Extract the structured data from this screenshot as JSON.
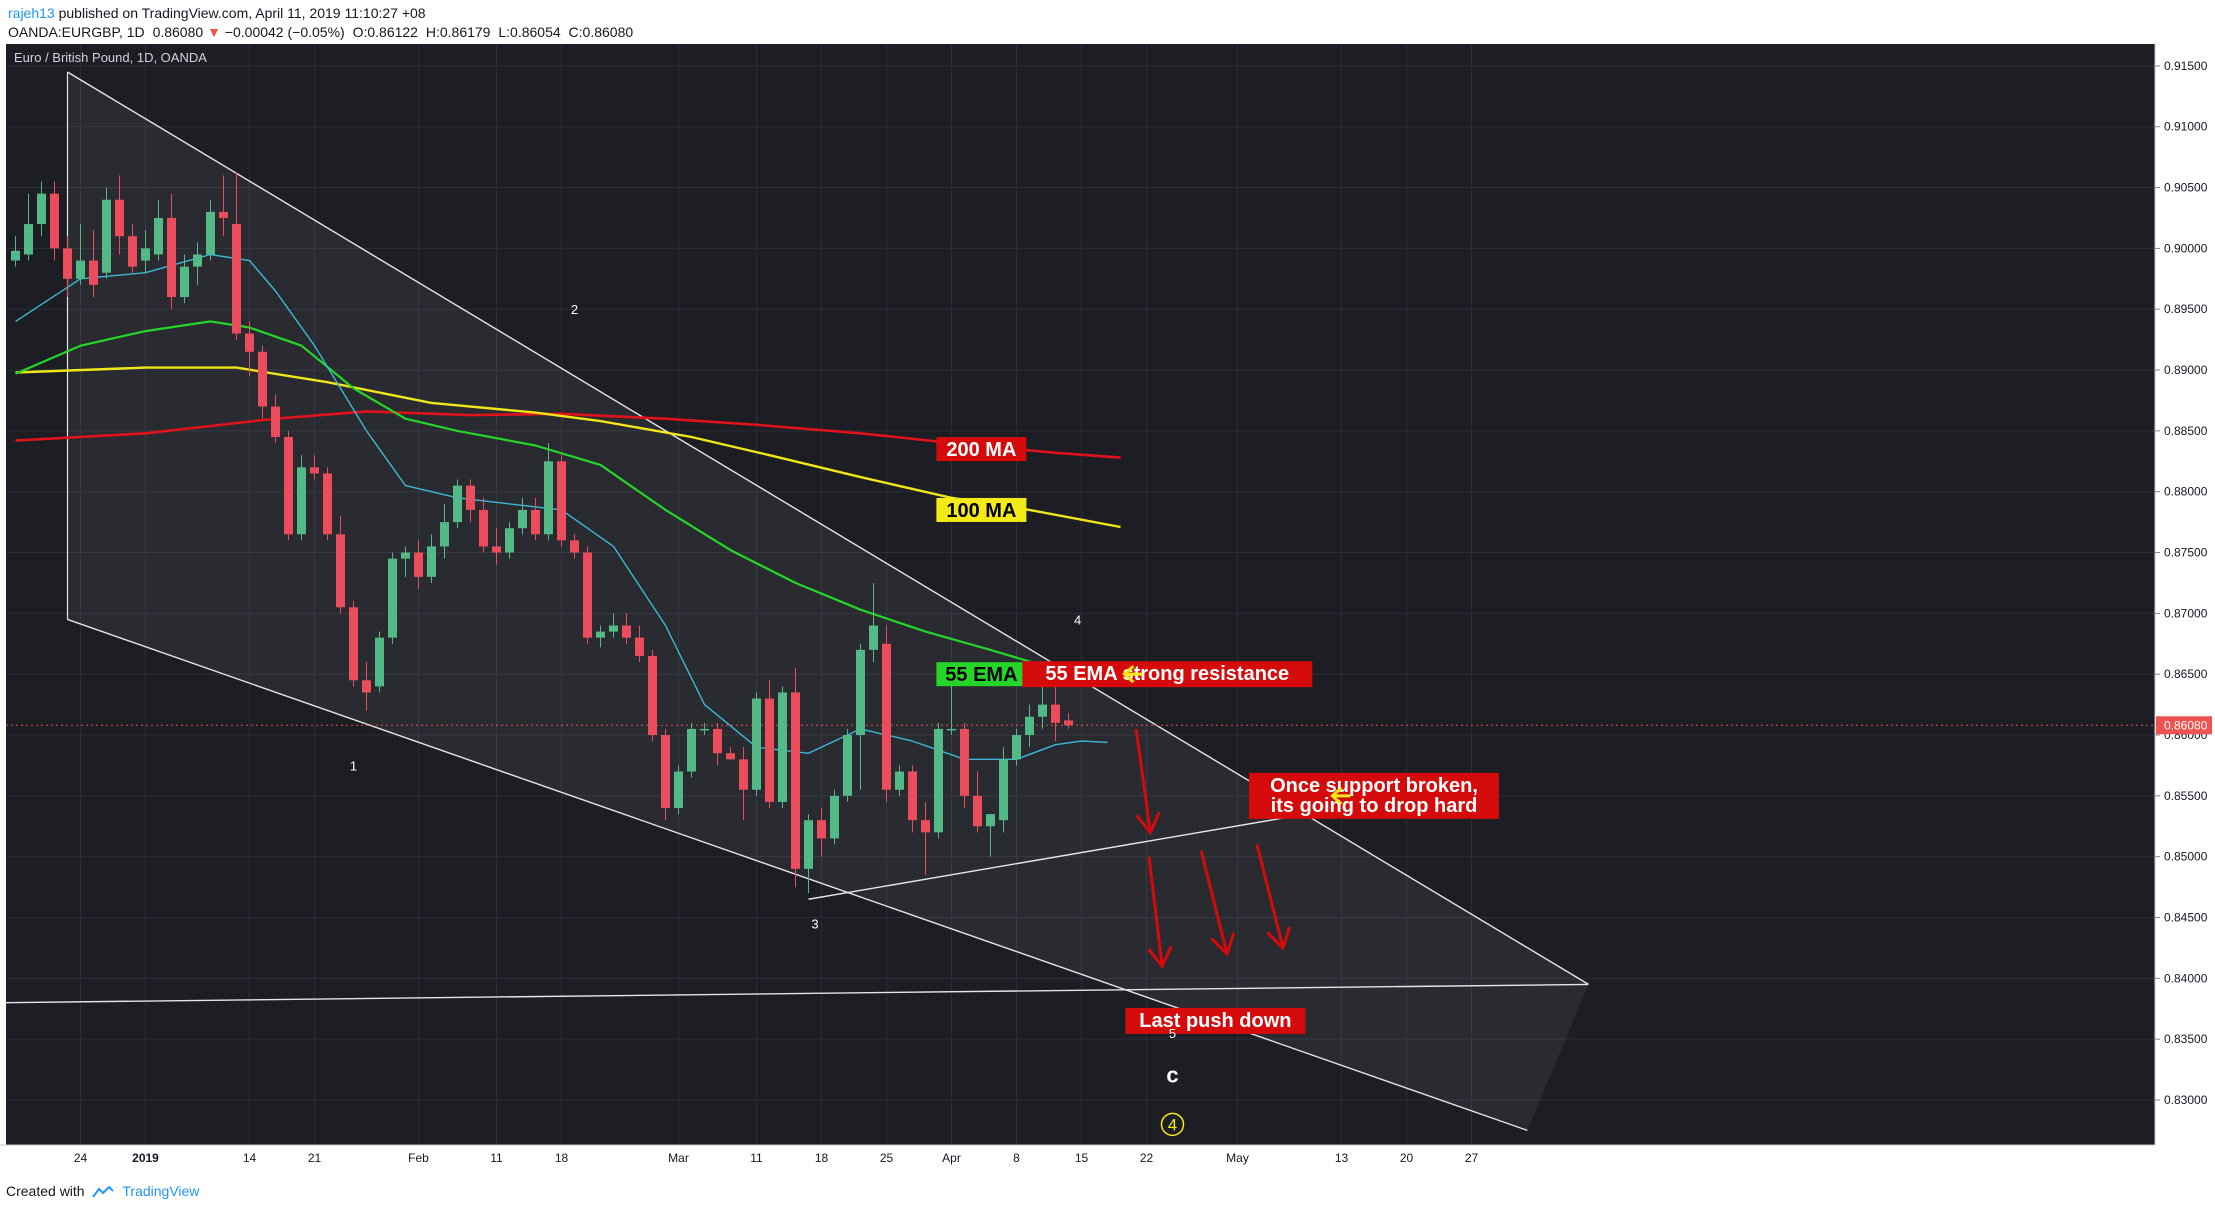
{
  "header": {
    "publisher_user": "rajeh13",
    "publisher_text": "published on TradingView.com, April 11, 2019 11:10:27 +08",
    "symbol": "OANDA:EURGBP, 1D",
    "last": "0.86080",
    "change": "−0.00042 (−0.05%)",
    "o_label": "O:",
    "o_value": "0.86122",
    "h_label": "H:",
    "h_value": "0.86179",
    "l_label": "L:",
    "l_value": "0.86054",
    "c_label": "C:",
    "c_value": "0.86080"
  },
  "footer": {
    "created_with": "Created with",
    "brand": "TradingView"
  },
  "colors": {
    "bg": "#1c1e24",
    "grid": "#2a2e39",
    "up": "#53b987",
    "down": "#eb4d5c",
    "ma200": "#e0121b",
    "ma100": "#f1e61a",
    "ema55": "#25d629",
    "ema_fast": "#3bb9d6",
    "channel": "#e6e6e6",
    "arrow_red": "#d50a0a",
    "arrow_yellow": "#f3ea16",
    "price_line": "#e05050"
  },
  "chart_data": {
    "type": "candlestick",
    "title": "Euro / British Pound, 1D, OANDA",
    "y_axis": {
      "range": [
        0.8263,
        0.9168
      ],
      "ticks": [
        "0.91500",
        "0.91000",
        "0.90500",
        "0.90000",
        "0.89500",
        "0.89000",
        "0.88500",
        "0.88000",
        "0.87500",
        "0.87000",
        "0.86500",
        "0.86000",
        "0.85500",
        "0.85000",
        "0.84500",
        "0.84000",
        "0.83500",
        "0.83000"
      ],
      "last_price_label": "0.86080",
      "last_price": 0.8608
    },
    "x_axis": {
      "tick_labels": [
        {
          "text": "24",
          "i": 5,
          "bold": false
        },
        {
          "text": "2019",
          "i": 10,
          "bold": true
        },
        {
          "text": "14",
          "i": 18,
          "bold": false
        },
        {
          "text": "21",
          "i": 23,
          "bold": false
        },
        {
          "text": "Feb",
          "i": 31,
          "bold": false
        },
        {
          "text": "11",
          "i": 37,
          "bold": false
        },
        {
          "text": "18",
          "i": 42,
          "bold": false
        },
        {
          "text": "Mar",
          "i": 51,
          "bold": false
        },
        {
          "text": "11",
          "i": 57,
          "bold": false
        },
        {
          "text": "18",
          "i": 62,
          "bold": false
        },
        {
          "text": "25",
          "i": 67,
          "bold": false
        },
        {
          "text": "Apr",
          "i": 72,
          "bold": false
        },
        {
          "text": "8",
          "i": 77,
          "bold": false
        },
        {
          "text": "15",
          "i": 82,
          "bold": false
        },
        {
          "text": "22",
          "i": 87,
          "bold": false
        },
        {
          "text": "May",
          "i": 94,
          "bold": false
        },
        {
          "text": "13",
          "i": 102,
          "bold": false
        },
        {
          "text": "20",
          "i": 107,
          "bold": false
        },
        {
          "text": "27",
          "i": 112,
          "bold": false
        }
      ]
    },
    "candles": [
      {
        "o": 0.899,
        "h": 0.901,
        "l": 0.8985,
        "c": 0.8998
      },
      {
        "o": 0.8995,
        "h": 0.9045,
        "l": 0.899,
        "c": 0.902
      },
      {
        "o": 0.902,
        "h": 0.9055,
        "l": 0.901,
        "c": 0.9045
      },
      {
        "o": 0.9045,
        "h": 0.9055,
        "l": 0.899,
        "c": 0.9
      },
      {
        "o": 0.9,
        "h": 0.901,
        "l": 0.896,
        "c": 0.8975
      },
      {
        "o": 0.8975,
        "h": 0.902,
        "l": 0.897,
        "c": 0.899
      },
      {
        "o": 0.899,
        "h": 0.9015,
        "l": 0.896,
        "c": 0.897
      },
      {
        "o": 0.898,
        "h": 0.905,
        "l": 0.8975,
        "c": 0.904
      },
      {
        "o": 0.904,
        "h": 0.906,
        "l": 0.8995,
        "c": 0.901
      },
      {
        "o": 0.901,
        "h": 0.902,
        "l": 0.898,
        "c": 0.8985
      },
      {
        "o": 0.899,
        "h": 0.9015,
        "l": 0.898,
        "c": 0.9
      },
      {
        "o": 0.8995,
        "h": 0.904,
        "l": 0.899,
        "c": 0.9025
      },
      {
        "o": 0.9025,
        "h": 0.9045,
        "l": 0.895,
        "c": 0.896
      },
      {
        "o": 0.896,
        "h": 0.8995,
        "l": 0.8955,
        "c": 0.8985
      },
      {
        "o": 0.8985,
        "h": 0.9005,
        "l": 0.897,
        "c": 0.8995
      },
      {
        "o": 0.8995,
        "h": 0.904,
        "l": 0.899,
        "c": 0.903
      },
      {
        "o": 0.903,
        "h": 0.906,
        "l": 0.901,
        "c": 0.9025
      },
      {
        "o": 0.902,
        "h": 0.9062,
        "l": 0.8925,
        "c": 0.893
      },
      {
        "o": 0.893,
        "h": 0.894,
        "l": 0.8895,
        "c": 0.8915
      },
      {
        "o": 0.8915,
        "h": 0.892,
        "l": 0.886,
        "c": 0.887
      },
      {
        "o": 0.887,
        "h": 0.888,
        "l": 0.884,
        "c": 0.8845
      },
      {
        "o": 0.8845,
        "h": 0.885,
        "l": 0.876,
        "c": 0.8765
      },
      {
        "o": 0.8765,
        "h": 0.883,
        "l": 0.876,
        "c": 0.882
      },
      {
        "o": 0.882,
        "h": 0.883,
        "l": 0.881,
        "c": 0.8815
      },
      {
        "o": 0.8815,
        "h": 0.882,
        "l": 0.876,
        "c": 0.8765
      },
      {
        "o": 0.8765,
        "h": 0.878,
        "l": 0.87,
        "c": 0.8705
      },
      {
        "o": 0.8705,
        "h": 0.871,
        "l": 0.864,
        "c": 0.8645
      },
      {
        "o": 0.8645,
        "h": 0.866,
        "l": 0.862,
        "c": 0.8635
      },
      {
        "o": 0.864,
        "h": 0.8685,
        "l": 0.8635,
        "c": 0.868
      },
      {
        "o": 0.868,
        "h": 0.875,
        "l": 0.8675,
        "c": 0.8745
      },
      {
        "o": 0.8745,
        "h": 0.8755,
        "l": 0.873,
        "c": 0.875
      },
      {
        "o": 0.875,
        "h": 0.876,
        "l": 0.872,
        "c": 0.873
      },
      {
        "o": 0.873,
        "h": 0.8765,
        "l": 0.8725,
        "c": 0.8755
      },
      {
        "o": 0.8755,
        "h": 0.879,
        "l": 0.8745,
        "c": 0.8775
      },
      {
        "o": 0.8775,
        "h": 0.881,
        "l": 0.877,
        "c": 0.8805
      },
      {
        "o": 0.8805,
        "h": 0.881,
        "l": 0.8775,
        "c": 0.8785
      },
      {
        "o": 0.8785,
        "h": 0.8795,
        "l": 0.875,
        "c": 0.8755
      },
      {
        "o": 0.8755,
        "h": 0.877,
        "l": 0.874,
        "c": 0.875
      },
      {
        "o": 0.875,
        "h": 0.8775,
        "l": 0.8745,
        "c": 0.877
      },
      {
        "o": 0.877,
        "h": 0.8795,
        "l": 0.8765,
        "c": 0.8785
      },
      {
        "o": 0.8785,
        "h": 0.8795,
        "l": 0.876,
        "c": 0.8765
      },
      {
        "o": 0.8765,
        "h": 0.884,
        "l": 0.876,
        "c": 0.8825
      },
      {
        "o": 0.8825,
        "h": 0.883,
        "l": 0.8755,
        "c": 0.876
      },
      {
        "o": 0.876,
        "h": 0.8765,
        "l": 0.8745,
        "c": 0.875
      },
      {
        "o": 0.875,
        "h": 0.8755,
        "l": 0.8675,
        "c": 0.868
      },
      {
        "o": 0.868,
        "h": 0.869,
        "l": 0.8672,
        "c": 0.8685
      },
      {
        "o": 0.8685,
        "h": 0.87,
        "l": 0.868,
        "c": 0.869
      },
      {
        "o": 0.869,
        "h": 0.87,
        "l": 0.8675,
        "c": 0.868
      },
      {
        "o": 0.868,
        "h": 0.869,
        "l": 0.866,
        "c": 0.8665
      },
      {
        "o": 0.8665,
        "h": 0.867,
        "l": 0.8595,
        "c": 0.86
      },
      {
        "o": 0.86,
        "h": 0.8605,
        "l": 0.853,
        "c": 0.854
      },
      {
        "o": 0.854,
        "h": 0.8575,
        "l": 0.8535,
        "c": 0.857
      },
      {
        "o": 0.857,
        "h": 0.861,
        "l": 0.8565,
        "c": 0.8605
      },
      {
        "o": 0.8605,
        "h": 0.861,
        "l": 0.86,
        "c": 0.8605
      },
      {
        "o": 0.8605,
        "h": 0.861,
        "l": 0.8575,
        "c": 0.8585
      },
      {
        "o": 0.8585,
        "h": 0.859,
        "l": 0.858,
        "c": 0.858
      },
      {
        "o": 0.858,
        "h": 0.859,
        "l": 0.853,
        "c": 0.8555
      },
      {
        "o": 0.8555,
        "h": 0.8635,
        "l": 0.855,
        "c": 0.863
      },
      {
        "o": 0.863,
        "h": 0.8645,
        "l": 0.854,
        "c": 0.8545
      },
      {
        "o": 0.8545,
        "h": 0.864,
        "l": 0.854,
        "c": 0.8635
      },
      {
        "o": 0.8635,
        "h": 0.8655,
        "l": 0.8475,
        "c": 0.849
      },
      {
        "o": 0.849,
        "h": 0.8535,
        "l": 0.847,
        "c": 0.853
      },
      {
        "o": 0.853,
        "h": 0.854,
        "l": 0.85,
        "c": 0.8515
      },
      {
        "o": 0.8515,
        "h": 0.8555,
        "l": 0.851,
        "c": 0.855
      },
      {
        "o": 0.855,
        "h": 0.8605,
        "l": 0.8545,
        "c": 0.86
      },
      {
        "o": 0.86,
        "h": 0.8675,
        "l": 0.8555,
        "c": 0.867
      },
      {
        "o": 0.867,
        "h": 0.8725,
        "l": 0.866,
        "c": 0.869
      },
      {
        "o": 0.8675,
        "h": 0.869,
        "l": 0.8545,
        "c": 0.8555
      },
      {
        "o": 0.8555,
        "h": 0.8575,
        "l": 0.855,
        "c": 0.857
      },
      {
        "o": 0.857,
        "h": 0.8575,
        "l": 0.852,
        "c": 0.853
      },
      {
        "o": 0.853,
        "h": 0.8545,
        "l": 0.8485,
        "c": 0.852
      },
      {
        "o": 0.852,
        "h": 0.861,
        "l": 0.8515,
        "c": 0.8605
      },
      {
        "o": 0.8605,
        "h": 0.865,
        "l": 0.86,
        "c": 0.8605
      },
      {
        "o": 0.8605,
        "h": 0.861,
        "l": 0.854,
        "c": 0.855
      },
      {
        "o": 0.855,
        "h": 0.857,
        "l": 0.852,
        "c": 0.8525
      },
      {
        "o": 0.8525,
        "h": 0.8535,
        "l": 0.85,
        "c": 0.8535
      },
      {
        "o": 0.853,
        "h": 0.859,
        "l": 0.852,
        "c": 0.858
      },
      {
        "o": 0.858,
        "h": 0.8605,
        "l": 0.8575,
        "c": 0.86
      },
      {
        "o": 0.86,
        "h": 0.8625,
        "l": 0.859,
        "c": 0.8615
      },
      {
        "o": 0.8615,
        "h": 0.8645,
        "l": 0.8605,
        "c": 0.8625
      },
      {
        "o": 0.8625,
        "h": 0.864,
        "l": 0.8595,
        "c": 0.861
      },
      {
        "o": 0.8612,
        "h": 0.8618,
        "l": 0.8605,
        "c": 0.8608
      }
    ],
    "indicators": [
      {
        "name": "200 MA",
        "values": [
          [
            0,
            0.8842
          ],
          [
            10,
            0.8848
          ],
          [
            20,
            0.886
          ],
          [
            27,
            0.8866
          ],
          [
            35,
            0.8863
          ],
          [
            42,
            0.8864
          ],
          [
            50,
            0.886
          ],
          [
            57,
            0.8855
          ],
          [
            65,
            0.8848
          ],
          [
            72,
            0.884
          ],
          [
            80,
            0.8832
          ],
          [
            85,
            0.8828
          ]
        ]
      },
      {
        "name": "100 MA",
        "values": [
          [
            0,
            0.8898
          ],
          [
            10,
            0.8902
          ],
          [
            17,
            0.8902
          ],
          [
            24,
            0.889
          ],
          [
            32,
            0.8873
          ],
          [
            40,
            0.8865
          ],
          [
            45,
            0.8858
          ],
          [
            52,
            0.8845
          ],
          [
            58,
            0.883
          ],
          [
            65,
            0.8812
          ],
          [
            72,
            0.8795
          ],
          [
            78,
            0.8785
          ],
          [
            85,
            0.8771
          ]
        ]
      },
      {
        "name": "55 EMA",
        "values": [
          [
            0,
            0.8897
          ],
          [
            5,
            0.892
          ],
          [
            10,
            0.8932
          ],
          [
            15,
            0.894
          ],
          [
            18,
            0.8935
          ],
          [
            22,
            0.892
          ],
          [
            26,
            0.8885
          ],
          [
            30,
            0.886
          ],
          [
            34,
            0.885
          ],
          [
            40,
            0.8838
          ],
          [
            45,
            0.8822
          ],
          [
            50,
            0.8785
          ],
          [
            55,
            0.8752
          ],
          [
            60,
            0.8725
          ],
          [
            65,
            0.8703
          ],
          [
            70,
            0.8685
          ],
          [
            75,
            0.867
          ],
          [
            80,
            0.8654
          ],
          [
            85,
            0.8649
          ]
        ]
      },
      {
        "name": "",
        "values": [
          [
            0,
            0.894
          ],
          [
            5,
            0.8975
          ],
          [
            10,
            0.898
          ],
          [
            15,
            0.8995
          ],
          [
            18,
            0.899
          ],
          [
            20,
            0.8965
          ],
          [
            23,
            0.892
          ],
          [
            27,
            0.885
          ],
          [
            30,
            0.8805
          ],
          [
            34,
            0.8795
          ],
          [
            38,
            0.879
          ],
          [
            42,
            0.8785
          ],
          [
            46,
            0.8755
          ],
          [
            50,
            0.869
          ],
          [
            53,
            0.8625
          ],
          [
            57,
            0.859
          ],
          [
            61,
            0.8585
          ],
          [
            65,
            0.8605
          ],
          [
            69,
            0.8595
          ],
          [
            73,
            0.858
          ],
          [
            77,
            0.858
          ],
          [
            80,
            0.8592
          ],
          [
            82,
            0.8595
          ],
          [
            84,
            0.8594
          ]
        ]
      }
    ],
    "annotations": {
      "ma_labels": [
        {
          "text": "200 MA",
          "i": 74.3,
          "price": 0.8835,
          "bg": "#d50a0a",
          "fg": "#ffffff"
        },
        {
          "text": "100 MA",
          "i": 74.3,
          "price": 0.8785,
          "bg": "#f3ea16",
          "fg": "#000000"
        },
        {
          "text": "55 EMA",
          "i": 74.3,
          "price": 0.865,
          "bg": "#25d629",
          "fg": "#000000"
        }
      ],
      "callouts": [
        {
          "lines": [
            "55 EMA strong resistance"
          ],
          "i": 88.6,
          "price": 0.865
        },
        {
          "lines": [
            "Once support broken,",
            "its going to drop hard"
          ],
          "i": 104.5,
          "price": 0.855
        },
        {
          "lines": [
            "Last push down"
          ],
          "i": 92.3,
          "price": 0.8365
        }
      ],
      "wave_labels": [
        {
          "text": "1",
          "i": 26,
          "price": 0.8575
        },
        {
          "text": "2",
          "i": 43,
          "price": 0.895
        },
        {
          "text": "3",
          "i": 61.5,
          "price": 0.8445
        },
        {
          "text": "4",
          "i": 81.7,
          "price": 0.8695
        },
        {
          "text": "5",
          "i": 89,
          "price": 0.8355
        },
        {
          "text": "c",
          "i": 89,
          "price": 0.832
        },
        {
          "text": "4",
          "i": 89,
          "price": 0.828
        }
      ],
      "channel_upper": [
        [
          4,
          0.9145
        ],
        [
          121,
          0.8395
        ]
      ],
      "channel_lower": [
        [
          4,
          0.8695
        ],
        [
          116.3,
          0.8275
        ]
      ],
      "support_line": [
        [
          61,
          0.8465
        ],
        [
          99.3,
          0.8535
        ]
      ],
      "horizontal_line": [
        [
          0,
          0.838
        ],
        [
          121,
          0.8395
        ]
      ],
      "red_arrows": [
        [
          [
            86.2,
            0.8605
          ],
          [
            87.3,
            0.852
          ]
        ],
        [
          [
            87.2,
            0.85
          ],
          [
            88.2,
            0.841
          ]
        ],
        [
          [
            91.2,
            0.8505
          ],
          [
            93.2,
            0.842
          ]
        ],
        [
          [
            95.5,
            0.851
          ],
          [
            97.5,
            0.8425
          ]
        ]
      ],
      "yellow_arrows": [
        {
          "i": 85.3,
          "price": 0.865
        },
        {
          "i": 101.3,
          "price": 0.855
        }
      ]
    }
  }
}
